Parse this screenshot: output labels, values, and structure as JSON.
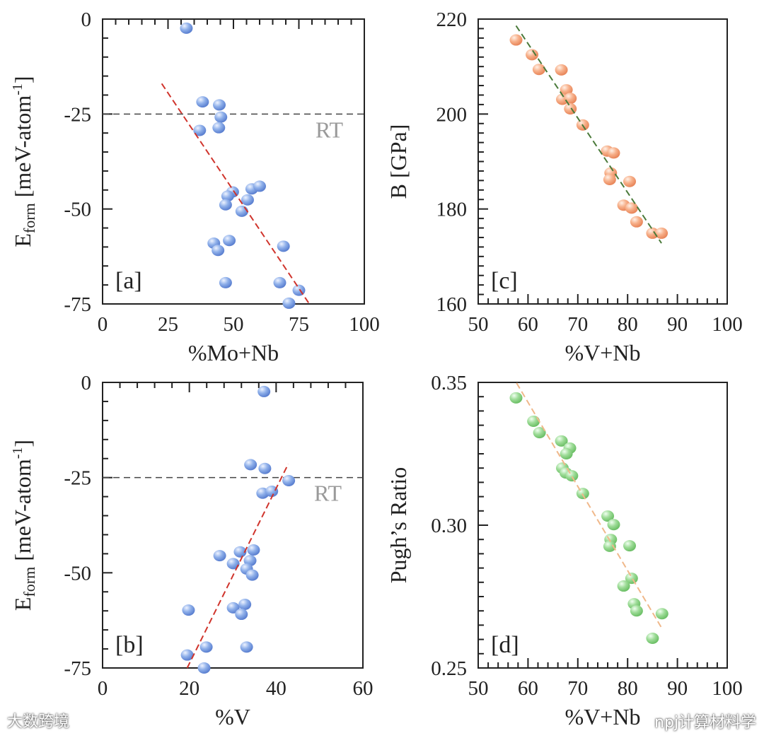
{
  "chart_data": [
    {
      "type": "scatter",
      "panel": "[a]",
      "xlabel": "%Mo+Nb",
      "ylabel_parts": [
        "E",
        "form",
        " [meV-atom",
        "-1",
        "]"
      ],
      "xlim": [
        0,
        100
      ],
      "ylim": [
        -75,
        0
      ],
      "xticks": [
        0,
        25,
        50,
        75,
        100
      ],
      "yticks": [
        0,
        -25,
        -50,
        -75
      ],
      "xminor": 5,
      "yminor": 5,
      "point_color": "#7b9fe0",
      "fit_color": "#d0342c",
      "reference_line": {
        "y": -25,
        "label": "RT"
      },
      "fit": [
        [
          22.6,
          -17
        ],
        [
          79,
          -75
        ]
      ],
      "points": [
        [
          32,
          -2.4
        ],
        [
          38.2,
          -21.8
        ],
        [
          44.6,
          -22.6
        ],
        [
          45.2,
          -25.8
        ],
        [
          37.1,
          -29.3
        ],
        [
          44.4,
          -28.6
        ],
        [
          49.7,
          -45.5
        ],
        [
          47.8,
          -46.6
        ],
        [
          47,
          -48.9
        ],
        [
          53.2,
          -50.6
        ],
        [
          55.4,
          -47.6
        ],
        [
          57,
          -44.7
        ],
        [
          60,
          -44
        ],
        [
          42.5,
          -59
        ],
        [
          44.1,
          -60.9
        ],
        [
          48.4,
          -58.3
        ],
        [
          69.1,
          -59.8
        ],
        [
          47,
          -69.4
        ],
        [
          67.7,
          -69.4
        ],
        [
          75,
          -71.4
        ],
        [
          71.2,
          -74.8
        ]
      ]
    },
    {
      "type": "scatter",
      "panel": "[b]",
      "xlabel": "%V",
      "ylabel_parts": [
        "E",
        "form",
        " [meV-atom",
        "-1",
        "]"
      ],
      "xlim": [
        0,
        60
      ],
      "ylim": [
        -75,
        0
      ],
      "xticks": [
        0,
        20,
        40,
        60
      ],
      "yticks": [
        0,
        -25,
        -50,
        -75
      ],
      "xminor": 4,
      "yminor": 5,
      "point_color": "#7b9fe0",
      "fit_color": "#d0342c",
      "reference_line": {
        "y": -25,
        "label": "RT"
      },
      "fit": [
        [
          19.5,
          -75
        ],
        [
          42.8,
          -21.4
        ]
      ],
      "points": [
        [
          37.2,
          -2.4
        ],
        [
          34.1,
          -21.6
        ],
        [
          37.4,
          -22.6
        ],
        [
          42.9,
          -25.8
        ],
        [
          36.9,
          -29.1
        ],
        [
          39,
          -28.6
        ],
        [
          27,
          -45.5
        ],
        [
          31.7,
          -44.5
        ],
        [
          34.8,
          -44
        ],
        [
          30.1,
          -47.6
        ],
        [
          34,
          -46.8
        ],
        [
          33.2,
          -49
        ],
        [
          34.5,
          -50.6
        ],
        [
          19.8,
          -59.8
        ],
        [
          30.1,
          -59.2
        ],
        [
          32.8,
          -58.3
        ],
        [
          32,
          -60.9
        ],
        [
          23.9,
          -69.5
        ],
        [
          33.2,
          -69.5
        ],
        [
          19.5,
          -71.6
        ],
        [
          23.4,
          -75
        ]
      ]
    },
    {
      "type": "scatter",
      "panel": "[c]",
      "xlabel": "%V+Nb",
      "ylabel_parts": [
        "B [GPa]"
      ],
      "xlim": [
        50,
        100
      ],
      "ylim": [
        160,
        220
      ],
      "xticks": [
        50,
        60,
        70,
        80,
        90,
        100
      ],
      "yticks": [
        160,
        180,
        200,
        220
      ],
      "xminor": 2,
      "yminor": 2,
      "point_color": "#f4a57a",
      "fit_color": "#4a7a3a",
      "fit": [
        [
          57.6,
          218.6
        ],
        [
          86.8,
          172.8
        ]
      ],
      "points": [
        [
          57.6,
          215.6
        ],
        [
          60.8,
          212.5
        ],
        [
          62.2,
          209.4
        ],
        [
          66.7,
          209.3
        ],
        [
          67.7,
          205.1
        ],
        [
          66.9,
          203.1
        ],
        [
          68.5,
          203.3
        ],
        [
          68.5,
          201.1
        ],
        [
          71,
          197.7
        ],
        [
          75.9,
          192.2
        ],
        [
          77.2,
          191.8
        ],
        [
          76.6,
          187.6
        ],
        [
          76.4,
          186.2
        ],
        [
          80.4,
          185.8
        ],
        [
          79.2,
          180.8
        ],
        [
          80.8,
          180.2
        ],
        [
          81.8,
          177.3
        ],
        [
          85,
          174.9
        ],
        [
          86.8,
          174.9
        ]
      ]
    },
    {
      "type": "scatter",
      "panel": "[d]",
      "xlabel": "%V+Nb",
      "ylabel_parts": [
        "Pugh’s Ratio"
      ],
      "xlim": [
        50,
        100
      ],
      "ylim": [
        0.25,
        0.35
      ],
      "xticks": [
        50,
        60,
        70,
        80,
        90,
        100
      ],
      "yticks": [
        0.25,
        0.3,
        0.35
      ],
      "ytick_labels": [
        "0.25",
        "0.30",
        "0.35"
      ],
      "xminor": 2,
      "yminor": 0.005,
      "point_color": "#8fd48a",
      "fit_color": "#f0b88a",
      "fit": [
        [
          57.7,
          0.3498
        ],
        [
          86.8,
          0.2641
        ]
      ],
      "points": [
        [
          57.6,
          0.3446
        ],
        [
          61.1,
          0.3364
        ],
        [
          62.3,
          0.3324
        ],
        [
          66.7,
          0.3295
        ],
        [
          68.4,
          0.327
        ],
        [
          67.7,
          0.325
        ],
        [
          66.9,
          0.32
        ],
        [
          67.6,
          0.3183
        ],
        [
          68.8,
          0.3173
        ],
        [
          71,
          0.3111
        ],
        [
          76,
          0.3032
        ],
        [
          77.2,
          0.3002
        ],
        [
          76.6,
          0.295
        ],
        [
          76.4,
          0.2926
        ],
        [
          80.4,
          0.2928
        ],
        [
          80.8,
          0.2814
        ],
        [
          79.2,
          0.2787
        ],
        [
          81.3,
          0.2725
        ],
        [
          81.8,
          0.27
        ],
        [
          86.9,
          0.269
        ],
        [
          85,
          0.2604
        ]
      ]
    }
  ],
  "watermarks": {
    "left": "大数跨境",
    "right": "npj计算材料学"
  }
}
